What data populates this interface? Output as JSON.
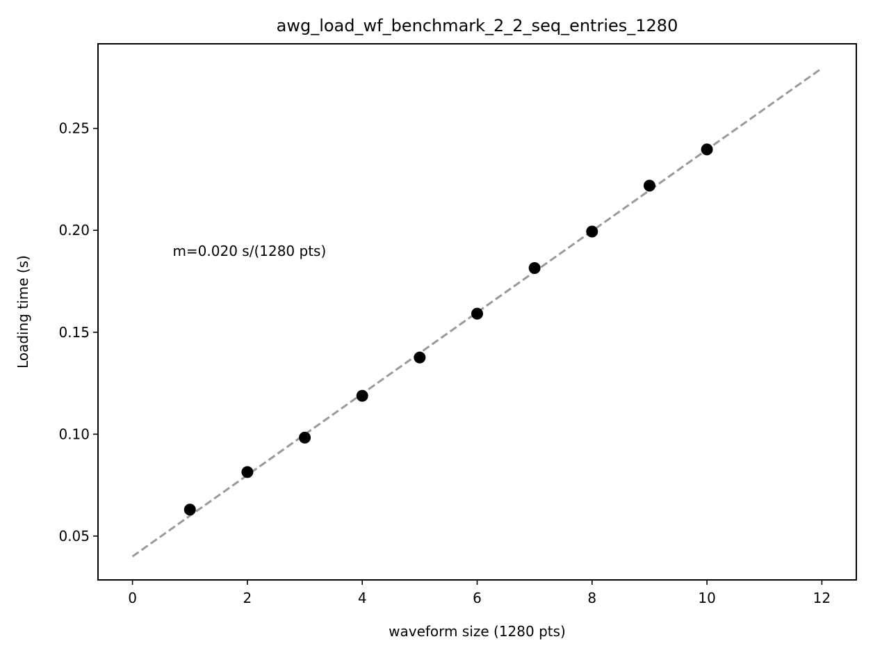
{
  "chart_data": {
    "type": "scatter",
    "title": "awg_load_wf_benchmark_2_2_seq_entries_1280",
    "xlabel": "waveform size (1280 pts)",
    "ylabel": "Loading time (s)",
    "xlim": [
      -0.6,
      12.6
    ],
    "ylim": [
      0.0285,
      0.2915
    ],
    "xticks": [
      0,
      2,
      4,
      6,
      8,
      10,
      12
    ],
    "xtick_labels": [
      "0",
      "2",
      "4",
      "6",
      "8",
      "10",
      "12"
    ],
    "yticks": [
      0.05,
      0.1,
      0.15,
      0.2,
      0.25
    ],
    "ytick_labels": [
      "0.05",
      "0.10",
      "0.15",
      "0.20",
      "0.25"
    ],
    "grid": false,
    "series": [
      {
        "kind": "points",
        "color": "#000000",
        "x": [
          1,
          2,
          3,
          4,
          5,
          6,
          7,
          8,
          9,
          10
        ],
        "y": [
          0.063,
          0.0814,
          0.0983,
          0.1188,
          0.1376,
          0.1591,
          0.1815,
          0.1994,
          0.2219,
          0.2397
        ]
      },
      {
        "kind": "fit-line",
        "style": "dashed",
        "color": "#999999",
        "x": [
          0,
          12
        ],
        "y": [
          0.04,
          0.2795
        ]
      }
    ],
    "annotation": {
      "text": "m=0.020 s/(1280 pts)",
      "x": 0.7,
      "y": 0.1875
    }
  }
}
